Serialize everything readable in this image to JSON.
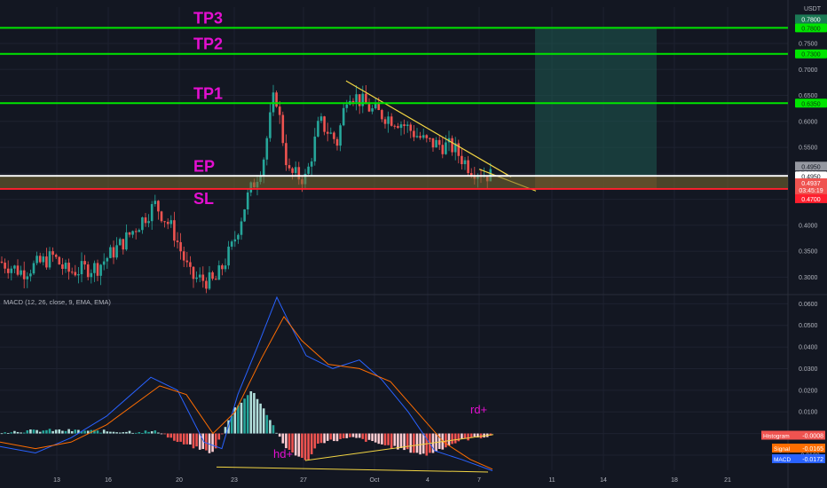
{
  "theme": {
    "bg": "#131722",
    "grid": "#1e2230",
    "axis_text": "#b2b5be",
    "up": "#26a69a",
    "down": "#ef5350",
    "tp_color": "#00e600",
    "sl_color": "#ff1f2e",
    "ep_color": "#ffffff",
    "label_color": "#e40fd0",
    "trend_color": "#f2d543",
    "zone_color": "#1d5a50",
    "macd_color": "#2962ff",
    "signal_color": "#ff6d00"
  },
  "price_axis": {
    "currency": "USDT",
    "ticks": [
      "0.7500",
      "0.7000",
      "0.6500",
      "0.6000",
      "0.5500",
      "0.5000",
      "0.4500",
      "0.4000",
      "0.3500",
      "0.3000"
    ]
  },
  "levels": [
    {
      "name": "TP3",
      "price": 0.78,
      "kind": "tp",
      "tag": "0.7800"
    },
    {
      "name": "TP2",
      "price": 0.73,
      "kind": "tp",
      "tag": "0.7300"
    },
    {
      "name": "TP1",
      "price": 0.635,
      "kind": "tp",
      "tag": "0.6350"
    },
    {
      "name": "EP",
      "price": 0.495,
      "kind": "ep",
      "tag": "0.4950"
    },
    {
      "name": "SL",
      "price": 0.47,
      "kind": "sl",
      "tag": "0.4700"
    }
  ],
  "price_tags": {
    "tp3_top": "0.7800",
    "ep_gray": "0.4950",
    "last_price": "0.4937",
    "countdown": "03:45:19",
    "sl_bottom": "0.4700"
  },
  "macd": {
    "title": "MACD (12, 26, close, 9, EMA, EMA)",
    "ticks": [
      "0.0600",
      "0.0500",
      "0.0400",
      "0.0300",
      "0.0200",
      "0.0100",
      "0.0000",
      "-0.0100"
    ],
    "histogram_label": "Histogram",
    "histogram_value": "-0.0008",
    "signal_label": "Signal",
    "signal_value": "-0.0165",
    "macd_label": "MACD",
    "macd_value": "-0.0172"
  },
  "annotations": {
    "rd": "rd+",
    "hd": "hd+"
  },
  "time_axis": [
    "13",
    "16",
    "20",
    "23",
    "27",
    "Oct",
    "4",
    "7",
    "11",
    "14",
    "18",
    "21"
  ],
  "chart_data": {
    "type": "candlestick",
    "price_ylim": [
      0.27,
      0.82
    ],
    "macd_ylim": [
      -0.017,
      0.063
    ],
    "levels": {
      "TP3": 0.78,
      "TP2": 0.73,
      "TP1": 0.635,
      "EP": 0.495,
      "SL": 0.47
    },
    "last_price": 0.4937,
    "key_points": [
      {
        "label": "start",
        "close": 0.33
      },
      {
        "label": "local high",
        "close": 0.44
      },
      {
        "label": "local low",
        "close": 0.29
      },
      {
        "label": "peak",
        "close": 0.66
      },
      {
        "label": "lower high",
        "close": 0.675
      },
      {
        "label": "last",
        "close": 0.4937
      }
    ],
    "macd_values": {
      "histogram": -0.0008,
      "signal": -0.0165,
      "macd": -0.0172
    }
  }
}
